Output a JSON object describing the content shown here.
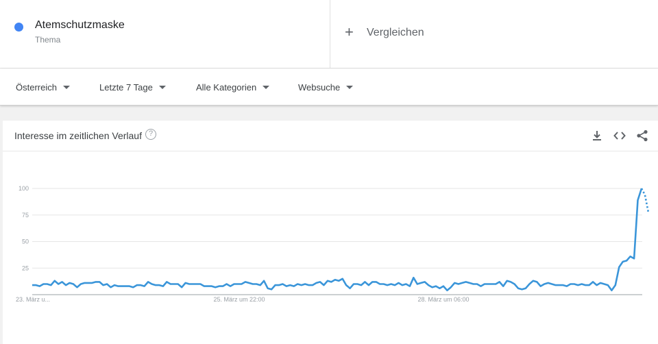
{
  "term": {
    "name": "Atemschutzmaske",
    "type": "Thema",
    "color": "#4285f4"
  },
  "compare": {
    "label": "Vergleichen",
    "icon": "plus-icon"
  },
  "filters": [
    {
      "label": "Österreich"
    },
    {
      "label": "Letzte 7 Tage"
    },
    {
      "label": "Alle Kategorien"
    },
    {
      "label": "Websuche"
    }
  ],
  "card": {
    "title": "Interesse im zeitlichen Verlauf",
    "icons": [
      "help-icon",
      "download-icon",
      "embed-icon",
      "share-icon"
    ]
  },
  "chart_data": {
    "type": "line",
    "title": "",
    "xlabel": "",
    "ylabel": "",
    "ylim": [
      0,
      100
    ],
    "yticks": [
      25,
      50,
      75,
      100
    ],
    "xtick_labels": [
      "23. März u...",
      "25. März um 22:00",
      "28. März um 06:00"
    ],
    "grid": true,
    "legend": "none",
    "line_color": "#3a95d9",
    "values": [
      9,
      9,
      8,
      10,
      10,
      9,
      13,
      10,
      12,
      9,
      11,
      10,
      7,
      10,
      11,
      11,
      11,
      12,
      12,
      9,
      10,
      7,
      9,
      8,
      8,
      8,
      8,
      7,
      9,
      9,
      8,
      12,
      10,
      9,
      9,
      8,
      12,
      10,
      10,
      10,
      7,
      11,
      10,
      10,
      10,
      10,
      8,
      8,
      8,
      7,
      8,
      8,
      10,
      8,
      10,
      10,
      10,
      12,
      11,
      10,
      10,
      9,
      13,
      6,
      5,
      9,
      9,
      10,
      8,
      9,
      8,
      10,
      9,
      10,
      9,
      9,
      11,
      12,
      9,
      13,
      12,
      14,
      13,
      15,
      9,
      6,
      10,
      10,
      9,
      12,
      9,
      12,
      12,
      10,
      10,
      9,
      10,
      9,
      11,
      9,
      10,
      8,
      16,
      10,
      11,
      12,
      9,
      7,
      8,
      6,
      8,
      4,
      7,
      11,
      10,
      11,
      12,
      11,
      10,
      10,
      8,
      10,
      10,
      10,
      10,
      12,
      8,
      13,
      12,
      10,
      6,
      5,
      6,
      10,
      13,
      12,
      8,
      10,
      11,
      10,
      9,
      9,
      9,
      8,
      10,
      10,
      9,
      10,
      9,
      9,
      12,
      9,
      11,
      10,
      9,
      4,
      9,
      26,
      31,
      32,
      36,
      34,
      89,
      100
    ],
    "partial_values": [
      100,
      94,
      78
    ]
  }
}
